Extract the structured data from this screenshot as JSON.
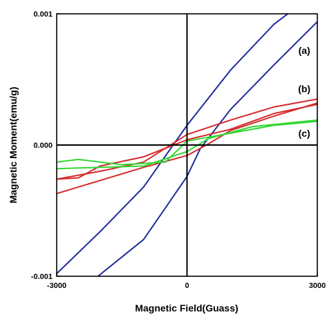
{
  "chart_data": {
    "type": "line",
    "title": "",
    "xlabel": "Magnetic Field(Guass)",
    "ylabel": "Magnetic Moment(emu/g)",
    "xlim": [
      -3000,
      3000
    ],
    "ylim": [
      -0.001,
      0.001
    ],
    "x_ticks": [
      -3000,
      0,
      3000
    ],
    "x_tick_labels": [
      "-3000",
      "0",
      "3000"
    ],
    "y_ticks": [
      -0.001,
      0.0,
      0.001
    ],
    "y_tick_labels": [
      "-0.001",
      "0.000",
      "0.001"
    ],
    "grid": false,
    "legend": "none",
    "annotations": [
      {
        "text": "(a)",
        "x": 2700,
        "y": 0.00072
      },
      {
        "text": "(b)",
        "x": 2700,
        "y": 0.00043
      },
      {
        "text": "(c)",
        "x": 2700,
        "y": 9e-05
      }
    ],
    "series": [
      {
        "color": "#1f2a9c",
        "segments": [
          {
            "x": [
              -3000,
              -2000,
              -1000,
              0,
              1000,
              2000,
              2400
            ],
            "y": [
              -0.00098,
              -0.00066,
              -0.00032,
              0.00015,
              0.00057,
              0.00092,
              0.00102
            ]
          },
          {
            "x": [
              -2050,
              -1000,
              0,
              300,
              1000,
              2000,
              3000
            ],
            "y": [
              -0.001,
              -0.00072,
              -0.00024,
              -3e-05,
              0.00027,
              0.00061,
              0.00094
            ]
          }
        ]
      },
      {
        "color": "#d42a2a",
        "segments": [
          {
            "x": [
              -3000,
              -2000,
              -1000,
              0,
              1000,
              2000,
              3000
            ],
            "y": [
              -0.00026,
              -0.0002,
              -0.00013,
              8e-05,
              0.00019,
              0.00029,
              0.00035
            ]
          },
          {
            "x": [
              -3000,
              -2000,
              -1000,
              0,
              500,
              1000,
              2000,
              3000
            ],
            "y": [
              -0.00037,
              -0.00027,
              -0.00017,
              -8e-05,
              1e-05,
              0.00011,
              0.00022,
              0.00032
            ]
          },
          {
            "x": [
              -3000,
              -2500,
              -2000,
              -1000,
              0,
              1000,
              2000,
              3000
            ],
            "y": [
              -0.00026,
              -0.00025,
              -0.00016,
              -9e-05,
              4e-05,
              0.00012,
              0.00024,
              0.00031
            ]
          }
        ]
      },
      {
        "color": "#33d633",
        "segments": [
          {
            "x": [
              -3000,
              -2500,
              -1500,
              -500,
              0,
              1000,
              2000,
              3000
            ],
            "y": [
              -0.00013,
              -0.00011,
              -0.00015,
              -0.00013,
              3e-05,
              9e-05,
              0.00015,
              0.00018
            ]
          },
          {
            "x": [
              -3000,
              -2000,
              -1000,
              0,
              500,
              1500,
              3000
            ],
            "y": [
              -0.00018,
              -0.00017,
              -0.00016,
              -5e-05,
              5e-05,
              0.00014,
              0.00019
            ]
          }
        ]
      }
    ]
  }
}
